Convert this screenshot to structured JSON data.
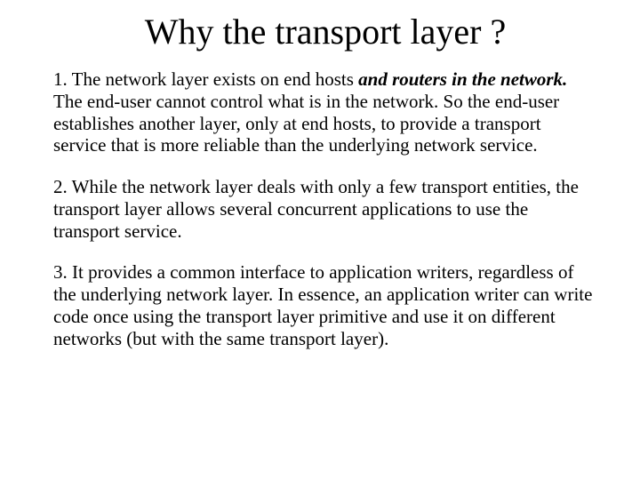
{
  "title": "Why the transport layer ?",
  "p1_a": "1. The network layer exists on end hosts ",
  "p1_b": "and routers in the network.",
  "p1_c": "  The end-user cannot control what is in the network. So the end-user establishes another layer, only at end hosts, to provide a transport service that is more reliable than the underlying network service.",
  "p2": "2. While the network layer deals with only a few transport entities, the transport layer allows several concurrent applications to use the transport service.",
  "p3": "3. It provides a common interface to application writers, regardless of the underlying network layer. In essence, an application writer can write code once using the transport layer primitive and use it on different networks (but with the same transport layer).",
  "colors": {
    "background": "#ffffff",
    "text": "#000000"
  },
  "typography": {
    "family": "Times New Roman",
    "title_size_pt": 40,
    "body_size_pt": 21
  }
}
